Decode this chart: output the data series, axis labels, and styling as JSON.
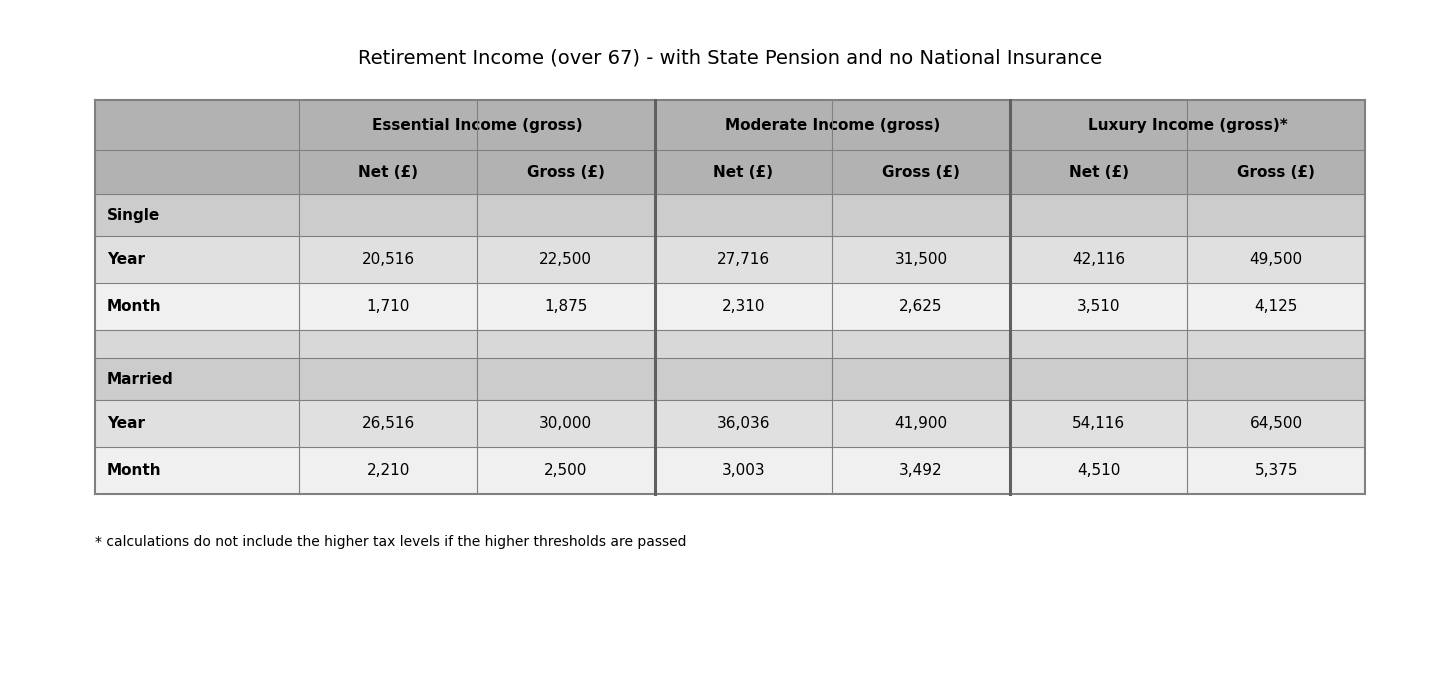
{
  "title": "Retirement Income (over 67) - with State Pension and no National Insurance",
  "footnote": "* calculations do not include the higher tax levels if the higher thresholds are passed",
  "col_groups": [
    {
      "label": "Essential Income (gross)",
      "span": 2
    },
    {
      "label": "Moderate Income (gross)",
      "span": 2
    },
    {
      "label": "Luxury Income (gross)*",
      "span": 2
    }
  ],
  "sub_headers": [
    "Net (£)",
    "Gross (£)",
    "Net (£)",
    "Gross (£)",
    "Net (£)",
    "Gross (£)"
  ],
  "row_groups": [
    {
      "group_label": "Single",
      "rows": [
        {
          "label": "Year",
          "values": [
            "20,516",
            "22,500",
            "27,716",
            "31,500",
            "42,116",
            "49,500"
          ]
        },
        {
          "label": "Month",
          "values": [
            "1,710",
            "1,875",
            "2,310",
            "2,625",
            "3,510",
            "4,125"
          ]
        }
      ]
    },
    {
      "group_label": "Married",
      "rows": [
        {
          "label": "Year",
          "values": [
            "26,516",
            "30,000",
            "36,036",
            "41,900",
            "54,116",
            "64,500"
          ]
        },
        {
          "label": "Month",
          "values": [
            "2,210",
            "2,500",
            "3,003",
            "3,492",
            "4,510",
            "5,375"
          ]
        }
      ]
    }
  ],
  "header_bg": "#b2b2b2",
  "subheader_bg": "#b2b2b2",
  "group_label_bg": "#cccccc",
  "row_bg_light": "#e0e0e0",
  "row_bg_white": "#f0f0f0",
  "spacer_bg": "#d8d8d8",
  "border_color": "#808080",
  "thick_border_color": "#606060",
  "title_fontsize": 14,
  "header_fontsize": 11,
  "cell_fontsize": 11,
  "footnote_fontsize": 10
}
